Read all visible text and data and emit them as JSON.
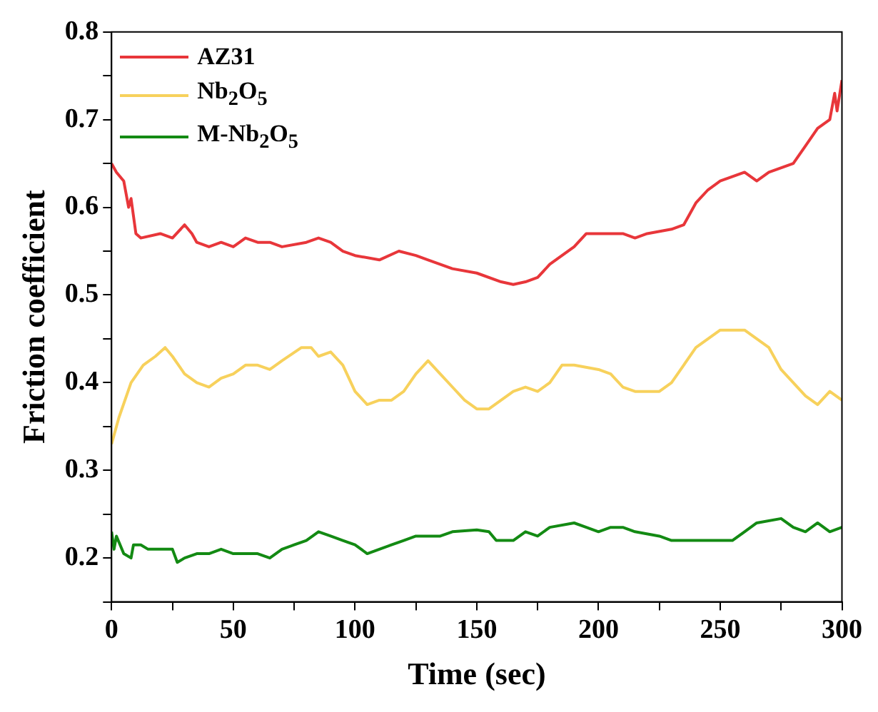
{
  "chart_data": {
    "type": "line",
    "xlabel": "Time (sec)",
    "ylabel": "Friction coefficient",
    "xlim": [
      0,
      300
    ],
    "ylim": [
      0.15,
      0.8
    ],
    "xticks": [
      0,
      {
        "value": 25,
        "label": null
      },
      50,
      {
        "value": 75,
        "label": null
      },
      100,
      {
        "value": 125,
        "label": null
      },
      150,
      {
        "value": 175,
        "label": null
      },
      200,
      {
        "value": 225,
        "label": null
      },
      250,
      {
        "value": 275,
        "label": null
      },
      300
    ],
    "yticks": [
      {
        "value": 0.15,
        "label": null
      },
      0.2,
      {
        "value": 0.25,
        "label": null
      },
      0.3,
      {
        "value": 0.35,
        "label": null
      },
      0.4,
      {
        "value": 0.45,
        "label": null
      },
      0.5,
      {
        "value": 0.55,
        "label": null
      },
      0.6,
      {
        "value": 0.65,
        "label": null
      },
      0.7,
      {
        "value": 0.75,
        "label": null
      },
      0.8
    ],
    "grid": false,
    "legend": "top left",
    "marker": "none",
    "line_style": "solid",
    "series": [
      {
        "name": "AZ31",
        "color": "#e8363a",
        "x": [
          0,
          2,
          5,
          7,
          8,
          10,
          12,
          20,
          25,
          30,
          33,
          35,
          40,
          45,
          50,
          55,
          60,
          65,
          70,
          80,
          85,
          90,
          95,
          100,
          110,
          118,
          125,
          130,
          140,
          150,
          160,
          165,
          170,
          175,
          180,
          190,
          195,
          200,
          210,
          215,
          220,
          230,
          235,
          240,
          245,
          250,
          260,
          265,
          270,
          280,
          285,
          290,
          295,
          297,
          298,
          300
        ],
        "values": [
          0.65,
          0.64,
          0.63,
          0.6,
          0.61,
          0.57,
          0.565,
          0.57,
          0.565,
          0.58,
          0.57,
          0.56,
          0.555,
          0.56,
          0.555,
          0.565,
          0.56,
          0.56,
          0.555,
          0.56,
          0.565,
          0.56,
          0.55,
          0.545,
          0.54,
          0.55,
          0.545,
          0.54,
          0.53,
          0.525,
          0.515,
          0.512,
          0.515,
          0.52,
          0.535,
          0.555,
          0.57,
          0.57,
          0.57,
          0.565,
          0.57,
          0.575,
          0.58,
          0.605,
          0.62,
          0.63,
          0.64,
          0.63,
          0.64,
          0.65,
          0.67,
          0.69,
          0.7,
          0.73,
          0.71,
          0.745
        ]
      },
      {
        "name": "Nb$_{2}$O$_{5}$",
        "color": "#f7d15c",
        "x": [
          0,
          3,
          8,
          13,
          18,
          22,
          25,
          30,
          35,
          40,
          45,
          50,
          55,
          60,
          65,
          70,
          78,
          82,
          85,
          90,
          95,
          100,
          105,
          110,
          115,
          120,
          125,
          130,
          135,
          140,
          145,
          150,
          155,
          160,
          165,
          170,
          175,
          180,
          185,
          190,
          200,
          205,
          210,
          215,
          225,
          230,
          235,
          240,
          245,
          250,
          255,
          260,
          265,
          270,
          275,
          280,
          285,
          290,
          295,
          300
        ],
        "values": [
          0.33,
          0.36,
          0.4,
          0.42,
          0.43,
          0.44,
          0.43,
          0.41,
          0.4,
          0.395,
          0.405,
          0.41,
          0.42,
          0.42,
          0.415,
          0.425,
          0.44,
          0.44,
          0.43,
          0.435,
          0.42,
          0.39,
          0.375,
          0.38,
          0.38,
          0.39,
          0.41,
          0.425,
          0.41,
          0.395,
          0.38,
          0.37,
          0.37,
          0.38,
          0.39,
          0.395,
          0.39,
          0.4,
          0.42,
          0.42,
          0.415,
          0.41,
          0.395,
          0.39,
          0.39,
          0.4,
          0.42,
          0.44,
          0.45,
          0.46,
          0.46,
          0.46,
          0.45,
          0.44,
          0.415,
          0.4,
          0.385,
          0.375,
          0.39,
          0.38
        ]
      },
      {
        "name": "M-Nb$_{2}$O$_{5}$",
        "color": "#138a13",
        "x": [
          0,
          1,
          2,
          5,
          8,
          9,
          12,
          15,
          25,
          27,
          30,
          35,
          40,
          45,
          50,
          55,
          60,
          65,
          70,
          75,
          80,
          85,
          90,
          95,
          100,
          105,
          110,
          115,
          120,
          125,
          135,
          140,
          150,
          155,
          158,
          165,
          170,
          175,
          180,
          190,
          195,
          200,
          205,
          210,
          215,
          225,
          230,
          240,
          250,
          255,
          260,
          265,
          275,
          280,
          285,
          290,
          295,
          300
        ],
        "values": [
          0.23,
          0.21,
          0.225,
          0.205,
          0.2,
          0.215,
          0.215,
          0.21,
          0.21,
          0.195,
          0.2,
          0.205,
          0.205,
          0.21,
          0.205,
          0.205,
          0.205,
          0.2,
          0.21,
          0.215,
          0.22,
          0.23,
          0.225,
          0.22,
          0.215,
          0.205,
          0.21,
          0.215,
          0.22,
          0.225,
          0.225,
          0.23,
          0.232,
          0.23,
          0.22,
          0.22,
          0.23,
          0.225,
          0.235,
          0.24,
          0.235,
          0.23,
          0.235,
          0.235,
          0.23,
          0.225,
          0.22,
          0.22,
          0.22,
          0.22,
          0.23,
          0.24,
          0.245,
          0.235,
          0.23,
          0.24,
          0.23,
          0.235
        ]
      }
    ]
  }
}
